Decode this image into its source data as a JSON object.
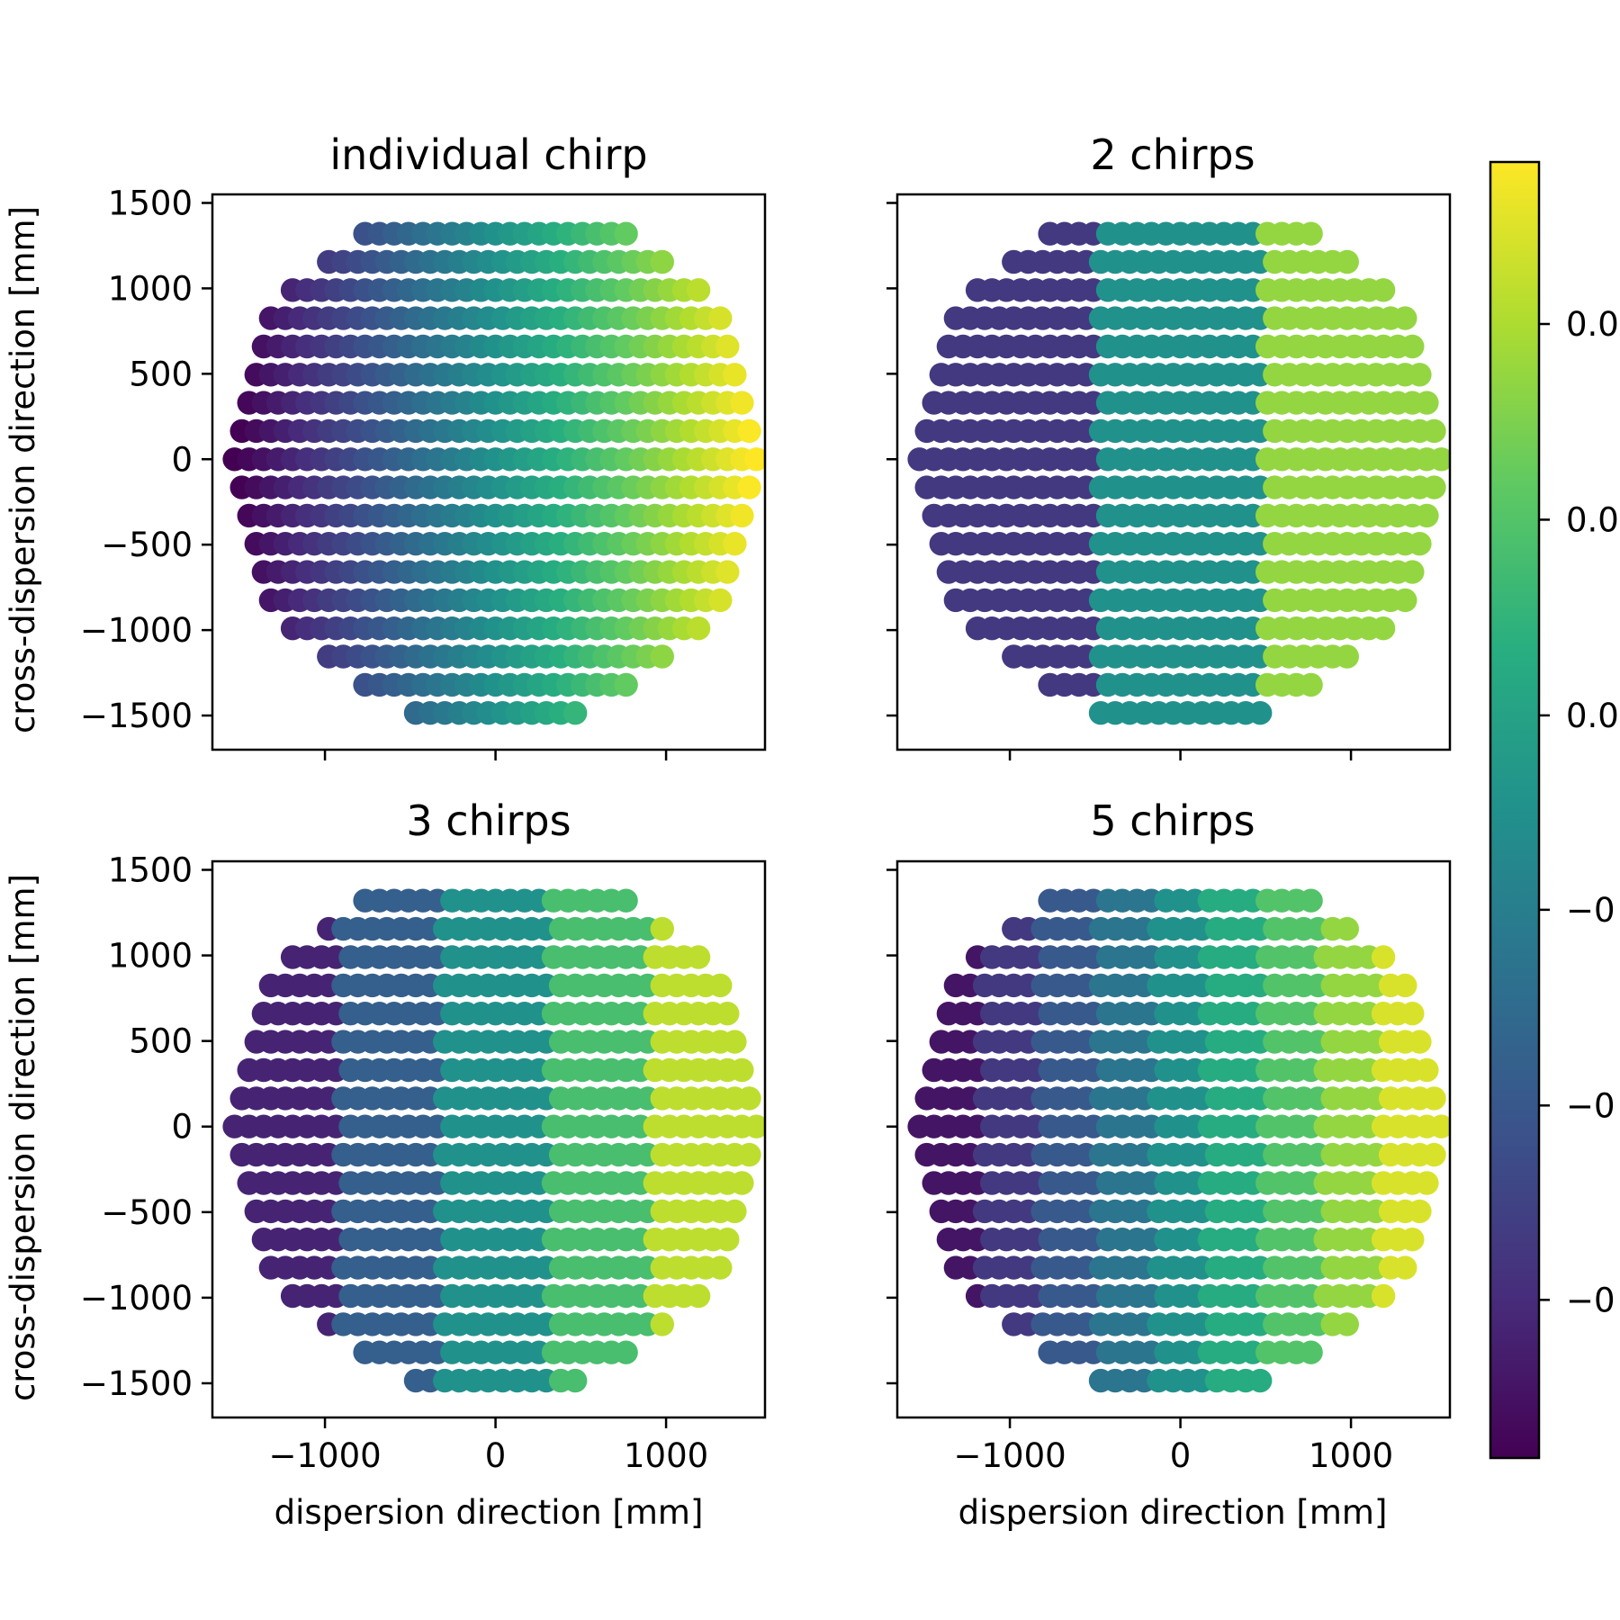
{
  "chart_data": [
    {
      "type": "scatter",
      "title": "individual chirp",
      "xlabel": "",
      "ylabel": "cross-dispersion direction [mm]",
      "n_bands": 0,
      "xlim": [
        -1660,
        1580
      ],
      "ylim": [
        -1700,
        1550
      ],
      "xticks": [
        -1000,
        0,
        1000
      ],
      "yticks": [
        -1500,
        -1000,
        -500,
        0,
        500,
        1000,
        1500
      ],
      "show_xticklabels": false,
      "show_yticklabels": true
    },
    {
      "type": "scatter",
      "title": "2 chirps",
      "xlabel": "",
      "ylabel": "",
      "n_bands": 3,
      "xlim": [
        -1660,
        1580
      ],
      "ylim": [
        -1700,
        1550
      ],
      "xticks": [
        -1000,
        0,
        1000
      ],
      "yticks": [
        -1500,
        -1000,
        -500,
        0,
        500,
        1000,
        1500
      ],
      "show_xticklabels": false,
      "show_yticklabels": false
    },
    {
      "type": "scatter",
      "title": "3 chirps",
      "xlabel": "dispersion direction [mm]",
      "ylabel": "cross-dispersion direction [mm]",
      "n_bands": 5,
      "xlim": [
        -1660,
        1580
      ],
      "ylim": [
        -1700,
        1550
      ],
      "xticks": [
        -1000,
        0,
        1000
      ],
      "yticks": [
        -1500,
        -1000,
        -500,
        0,
        500,
        1000,
        1500
      ],
      "show_xticklabels": true,
      "show_yticklabels": true
    },
    {
      "type": "scatter",
      "title": "5 chirps",
      "xlabel": "dispersion direction [mm]",
      "ylabel": "",
      "n_bands": 9,
      "xlim": [
        -1660,
        1580
      ],
      "ylim": [
        -1700,
        1550
      ],
      "xticks": [
        -1000,
        0,
        1000
      ],
      "yticks": [
        -1500,
        -1000,
        -500,
        0,
        500,
        1000,
        1500
      ],
      "show_xticklabels": true,
      "show_yticklabels": false
    }
  ],
  "points": {
    "x_spacing": 85,
    "y_spacing": 165,
    "radius_limit": 1560,
    "color_range_x": [
      -1500,
      1500
    ]
  },
  "colorbar": {
    "colormap": "viridis",
    "tick_labels": [
      "0.0",
      "0.0",
      "0.0",
      "−0",
      "−0",
      "−0"
    ],
    "tick_fractions": [
      0.875,
      0.724,
      0.573,
      0.423,
      0.272,
      0.122
    ]
  }
}
